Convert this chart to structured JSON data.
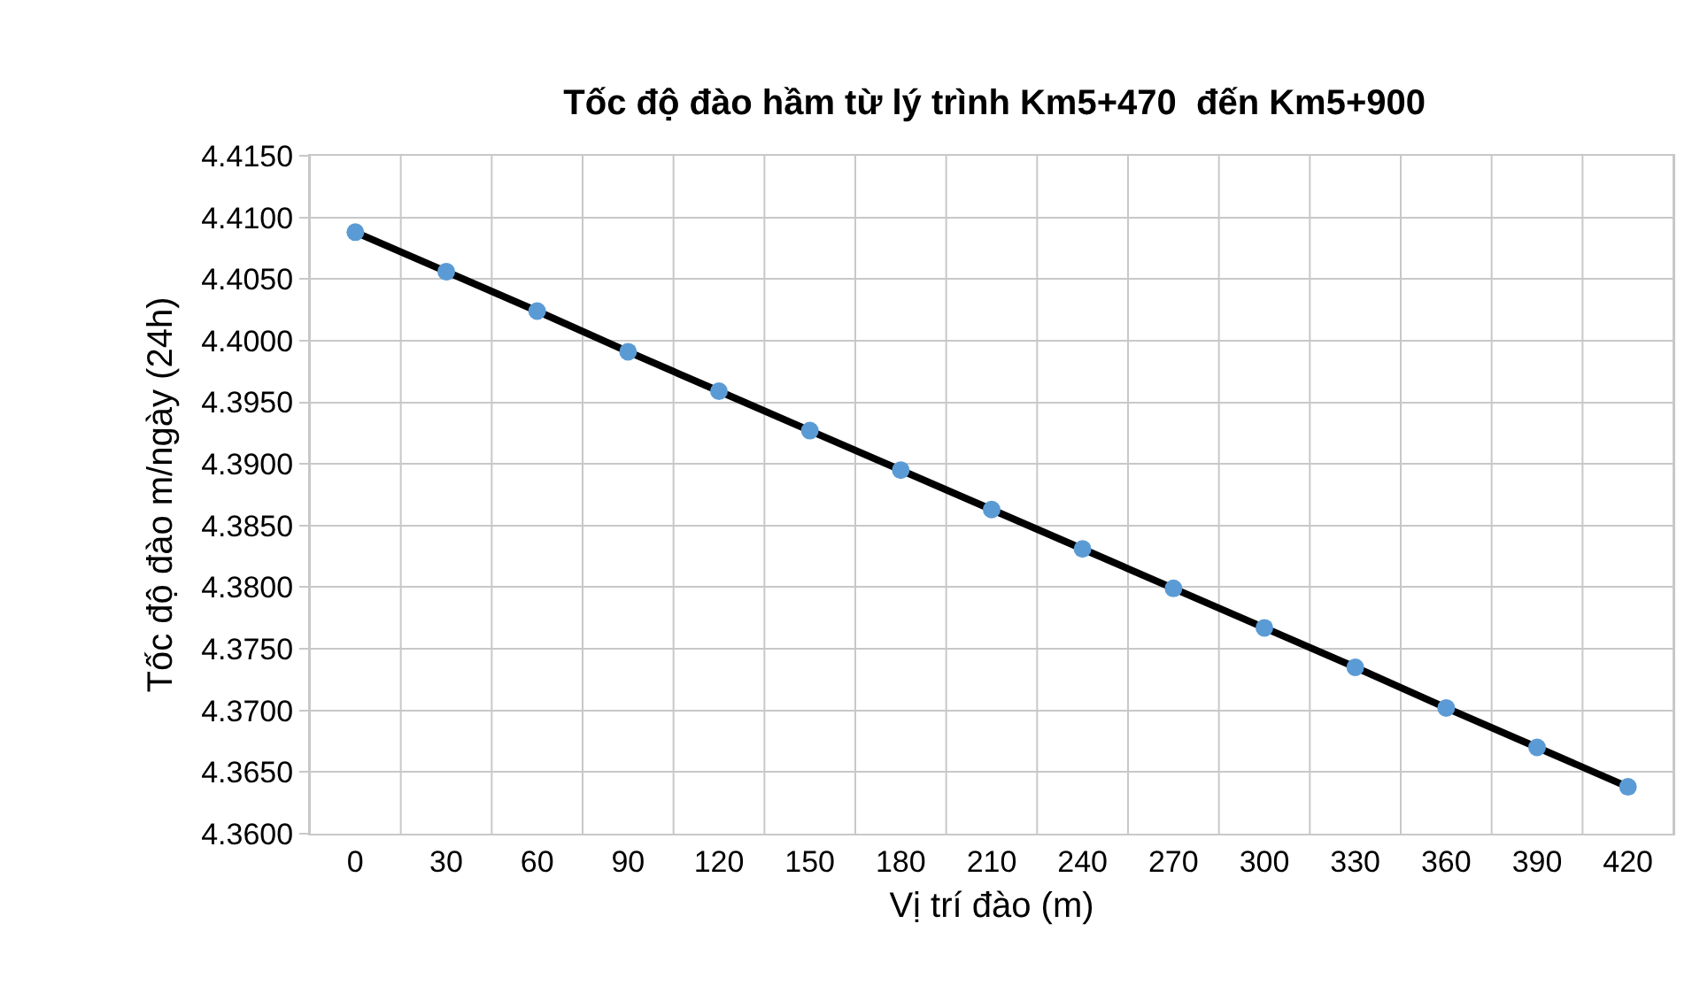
{
  "chart_data": {
    "type": "line",
    "title": "Tốc độ đào hầm từ lý trình Km5+470  đến Km5+900",
    "xlabel": "Vị trí đào (m)",
    "ylabel": "Tốc độ đào m/ngày (24h)",
    "categories": [
      "0",
      "30",
      "60",
      "90",
      "120",
      "150",
      "180",
      "210",
      "240",
      "270",
      "300",
      "330",
      "360",
      "390",
      "420"
    ],
    "series": [
      {
        "color": "#000000",
        "colors": [
          "#5b9bd5",
          "#5b9bd5",
          "#5b9bd5",
          "#5b9bd5",
          "#5b9bd5",
          "#5b9bd5",
          "#5b9bd5",
          "#5b9bd5",
          "#5b9bd5",
          "#5b9bd5",
          "#5b9bd5",
          "#5b9bd5",
          "#5b9bd5",
          "#5b9bd5",
          "#5b9bd5"
        ],
        "values": [
          4.4088,
          4.4056,
          4.4024,
          4.3991,
          4.3959,
          4.3927,
          4.3895,
          4.3863,
          4.3831,
          4.3799,
          4.3767,
          4.3735,
          4.3702,
          4.367,
          4.3638
        ]
      }
    ],
    "ylim": [
      4.36,
      4.415
    ],
    "yticks": [
      {
        "value": 4.36,
        "label": "4.3600"
      },
      {
        "value": 4.365,
        "label": "4.3650"
      },
      {
        "value": 4.37,
        "label": "4.3700"
      },
      {
        "value": 4.375,
        "label": "4.3750"
      },
      {
        "value": 4.38,
        "label": "4.3800"
      },
      {
        "value": 4.385,
        "label": "4.3850"
      },
      {
        "value": 4.39,
        "label": "4.3900"
      },
      {
        "value": 4.395,
        "label": "4.3950"
      },
      {
        "value": 4.4,
        "label": "4.4000"
      },
      {
        "value": 4.405,
        "label": "4.4050"
      },
      {
        "value": 4.41,
        "label": "4.4100"
      },
      {
        "value": 4.415,
        "label": "4.4150"
      }
    ],
    "grid": true,
    "legend": false,
    "marker": "circle",
    "line_style": "solid"
  }
}
